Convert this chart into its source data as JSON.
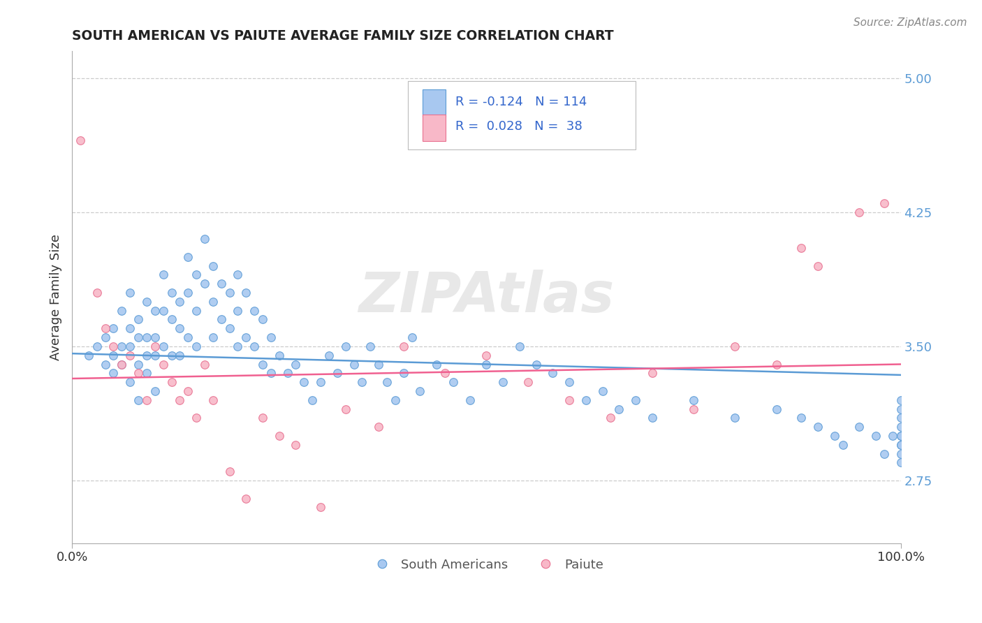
{
  "title": "SOUTH AMERICAN VS PAIUTE AVERAGE FAMILY SIZE CORRELATION CHART",
  "source_text": "Source: ZipAtlas.com",
  "ylabel": "Average Family Size",
  "watermark": "ZIPAtlas",
  "xlim": [
    0.0,
    1.0
  ],
  "ylim": [
    2.4,
    5.15
  ],
  "yticks_right": [
    2.75,
    3.5,
    4.25,
    5.0
  ],
  "xticks": [
    0.0,
    1.0
  ],
  "xticklabels": [
    "0.0%",
    "100.0%"
  ],
  "blue_fill": "#a8c8f0",
  "blue_edge": "#5b9bd5",
  "pink_fill": "#f8b8c8",
  "pink_edge": "#e87090",
  "blue_line_color": "#5b9bd5",
  "pink_line_color": "#f06090",
  "blue_R": -0.124,
  "blue_N": 114,
  "pink_R": 0.028,
  "pink_N": 38,
  "blue_intercept": 3.46,
  "blue_slope": -0.12,
  "pink_intercept": 3.32,
  "pink_slope": 0.08,
  "legend_label1": "South Americans",
  "legend_label2": "Paiute",
  "blue_scatter_x": [
    0.02,
    0.03,
    0.04,
    0.04,
    0.05,
    0.05,
    0.05,
    0.06,
    0.06,
    0.06,
    0.07,
    0.07,
    0.07,
    0.07,
    0.08,
    0.08,
    0.08,
    0.08,
    0.09,
    0.09,
    0.09,
    0.09,
    0.1,
    0.1,
    0.1,
    0.1,
    0.11,
    0.11,
    0.11,
    0.12,
    0.12,
    0.12,
    0.13,
    0.13,
    0.13,
    0.14,
    0.14,
    0.14,
    0.15,
    0.15,
    0.15,
    0.16,
    0.16,
    0.17,
    0.17,
    0.17,
    0.18,
    0.18,
    0.19,
    0.19,
    0.2,
    0.2,
    0.2,
    0.21,
    0.21,
    0.22,
    0.22,
    0.23,
    0.23,
    0.24,
    0.24,
    0.25,
    0.26,
    0.27,
    0.28,
    0.29,
    0.3,
    0.31,
    0.32,
    0.33,
    0.34,
    0.35,
    0.36,
    0.37,
    0.38,
    0.39,
    0.4,
    0.41,
    0.42,
    0.44,
    0.46,
    0.48,
    0.5,
    0.52,
    0.54,
    0.56,
    0.58,
    0.6,
    0.62,
    0.64,
    0.66,
    0.68,
    0.7,
    0.75,
    0.8,
    0.85,
    0.88,
    0.9,
    0.92,
    0.93,
    0.95,
    0.97,
    0.98,
    0.99,
    1.0,
    1.0,
    1.0,
    1.0,
    1.0,
    1.0,
    1.0,
    1.0,
    1.0,
    1.0
  ],
  "blue_scatter_y": [
    3.45,
    3.5,
    3.4,
    3.55,
    3.6,
    3.45,
    3.35,
    3.7,
    3.5,
    3.4,
    3.8,
    3.6,
    3.5,
    3.3,
    3.65,
    3.55,
    3.4,
    3.2,
    3.75,
    3.55,
    3.45,
    3.35,
    3.7,
    3.55,
    3.45,
    3.25,
    3.9,
    3.7,
    3.5,
    3.8,
    3.65,
    3.45,
    3.75,
    3.6,
    3.45,
    4.0,
    3.8,
    3.55,
    3.9,
    3.7,
    3.5,
    4.1,
    3.85,
    3.95,
    3.75,
    3.55,
    3.85,
    3.65,
    3.8,
    3.6,
    3.9,
    3.7,
    3.5,
    3.8,
    3.55,
    3.7,
    3.5,
    3.65,
    3.4,
    3.55,
    3.35,
    3.45,
    3.35,
    3.4,
    3.3,
    3.2,
    3.3,
    3.45,
    3.35,
    3.5,
    3.4,
    3.3,
    3.5,
    3.4,
    3.3,
    3.2,
    3.35,
    3.55,
    3.25,
    3.4,
    3.3,
    3.2,
    3.4,
    3.3,
    3.5,
    3.4,
    3.35,
    3.3,
    3.2,
    3.25,
    3.15,
    3.2,
    3.1,
    3.2,
    3.1,
    3.15,
    3.1,
    3.05,
    3.0,
    2.95,
    3.05,
    3.0,
    2.9,
    3.0,
    3.1,
    3.2,
    3.15,
    3.05,
    2.95,
    3.0,
    2.9,
    2.85,
    3.0,
    2.95
  ],
  "pink_scatter_x": [
    0.01,
    0.03,
    0.04,
    0.05,
    0.06,
    0.07,
    0.08,
    0.09,
    0.1,
    0.11,
    0.12,
    0.13,
    0.14,
    0.15,
    0.16,
    0.17,
    0.19,
    0.21,
    0.23,
    0.25,
    0.27,
    0.3,
    0.33,
    0.37,
    0.4,
    0.45,
    0.5,
    0.55,
    0.6,
    0.65,
    0.7,
    0.75,
    0.8,
    0.85,
    0.88,
    0.9,
    0.95,
    0.98
  ],
  "pink_scatter_y": [
    4.65,
    3.8,
    3.6,
    3.5,
    3.4,
    3.45,
    3.35,
    3.2,
    3.5,
    3.4,
    3.3,
    3.2,
    3.25,
    3.1,
    3.4,
    3.2,
    2.8,
    2.65,
    3.1,
    3.0,
    2.95,
    2.6,
    3.15,
    3.05,
    3.5,
    3.35,
    3.45,
    3.3,
    3.2,
    3.1,
    3.35,
    3.15,
    3.5,
    3.4,
    4.05,
    3.95,
    4.25,
    4.3
  ]
}
